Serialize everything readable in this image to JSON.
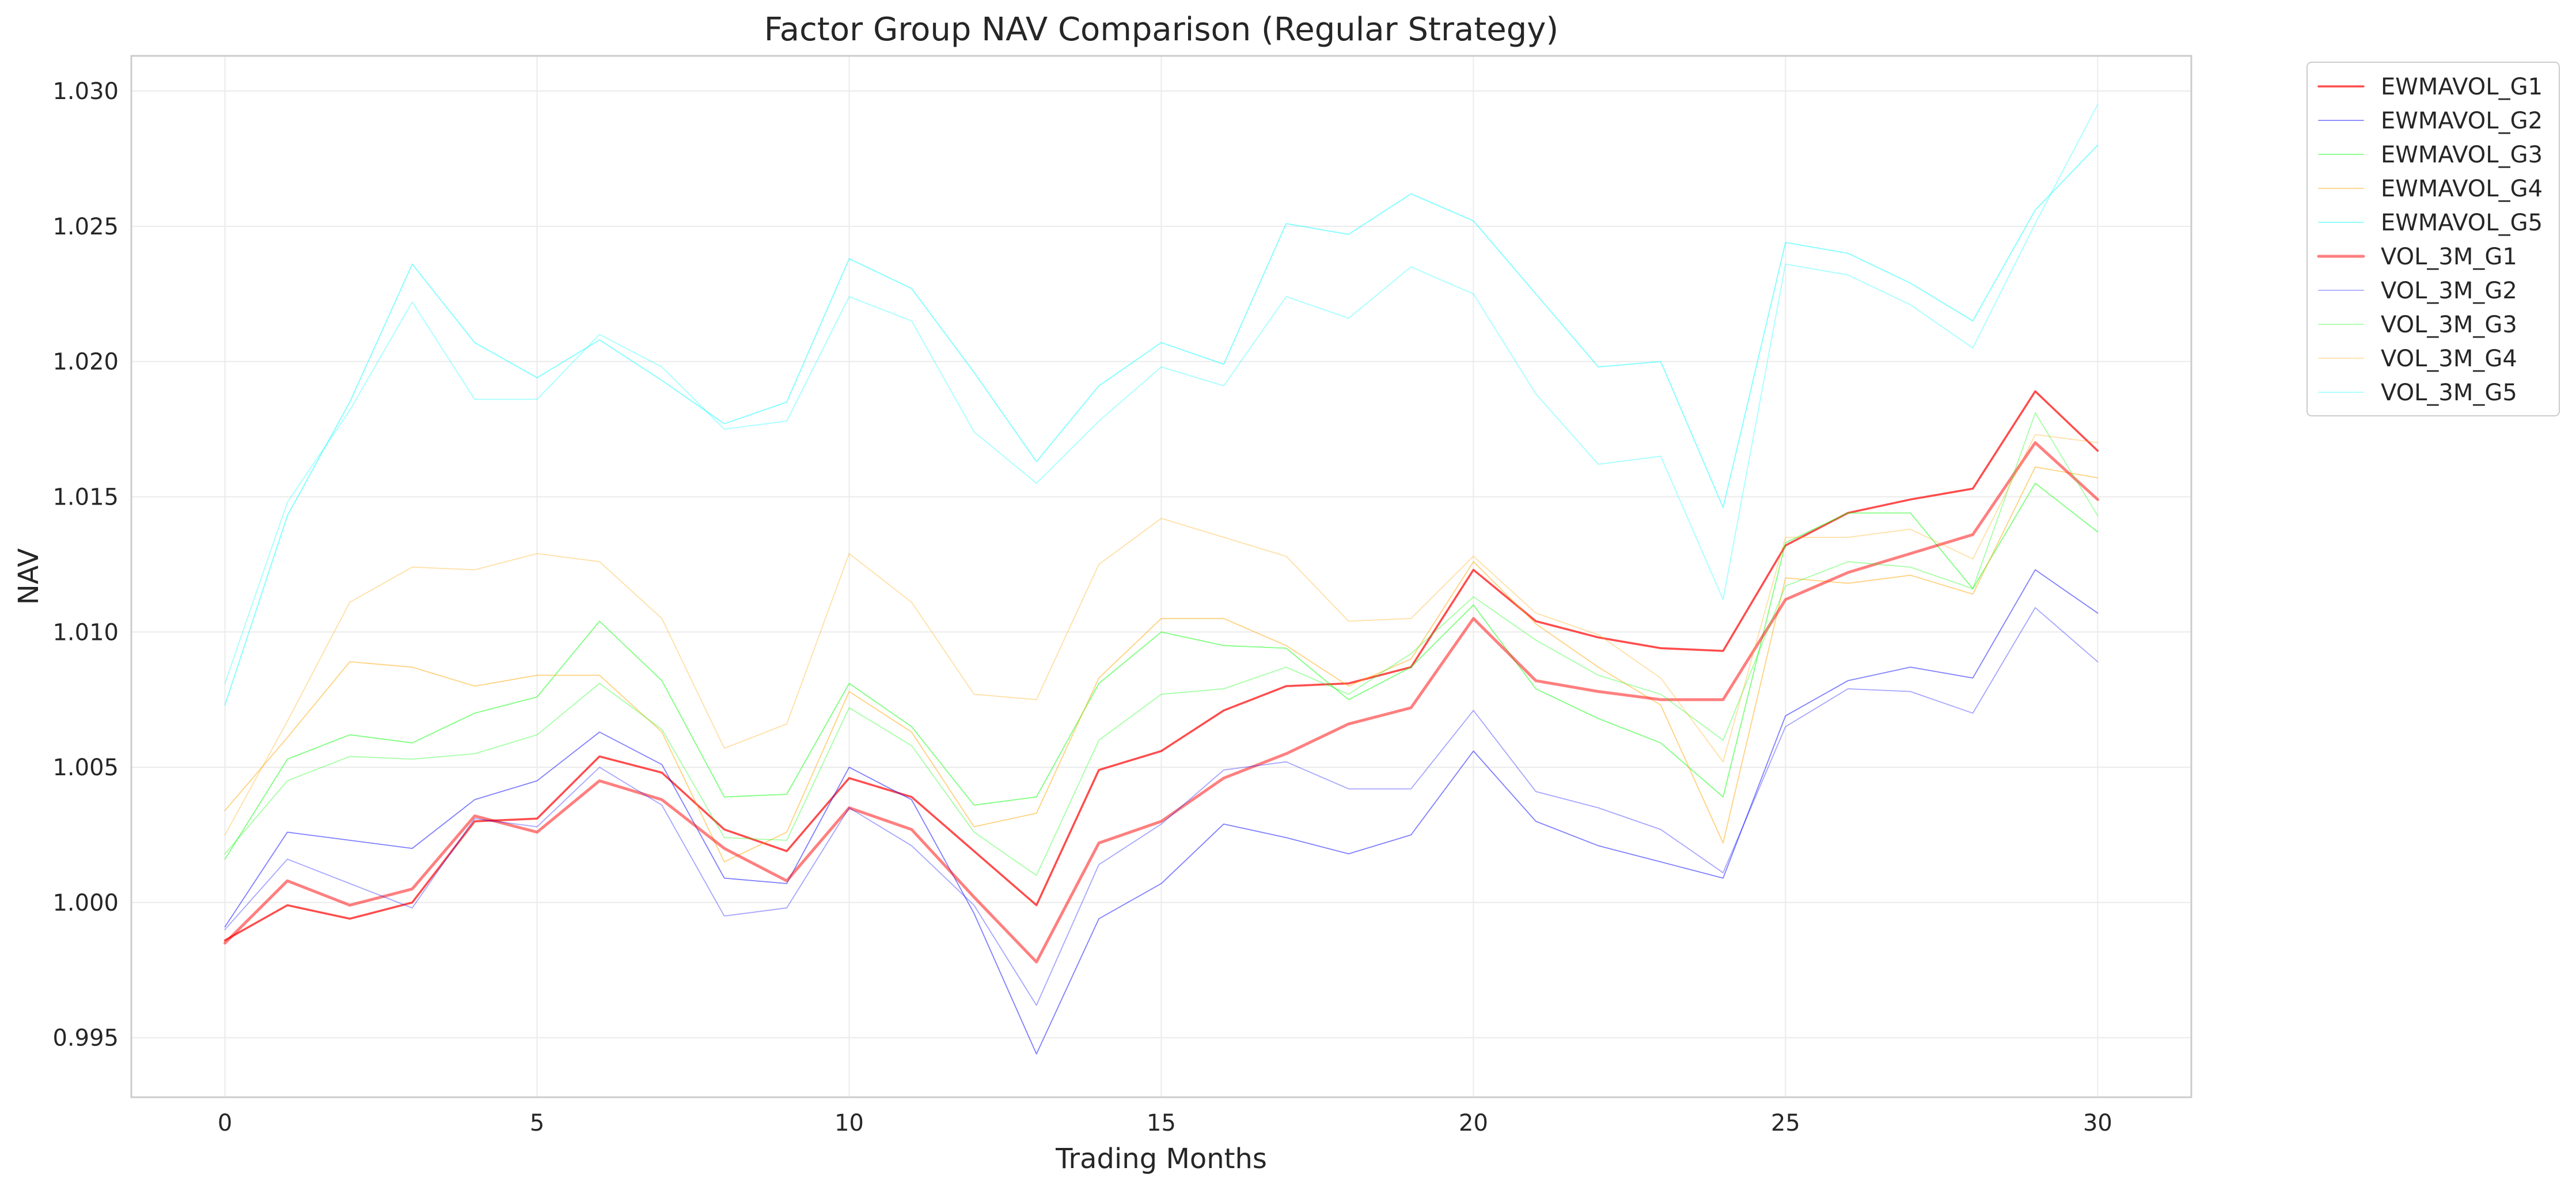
{
  "chart_data": {
    "type": "line",
    "title": "Factor Group NAV Comparison (Regular Strategy)",
    "xlabel": "Trading Months",
    "ylabel": "NAV",
    "xlim": [
      -1.5,
      31.5
    ],
    "ylim": [
      0.9928,
      1.0313
    ],
    "xticks": [
      0,
      5,
      10,
      15,
      20,
      25,
      30
    ],
    "yticks": [
      0.995,
      1.0,
      1.005,
      1.01,
      1.015,
      1.02,
      1.025,
      1.03
    ],
    "ytick_labels": [
      "0.995",
      "1.000",
      "1.005",
      "1.010",
      "1.015",
      "1.020",
      "1.025",
      "1.030"
    ],
    "grid": true,
    "legend_position": "outside-right",
    "x": [
      0,
      1,
      2,
      3,
      4,
      5,
      6,
      7,
      8,
      9,
      10,
      11,
      12,
      13,
      14,
      15,
      16,
      17,
      18,
      19,
      20,
      21,
      22,
      23,
      24,
      25,
      26,
      27,
      28,
      29,
      30
    ],
    "series": [
      {
        "name": "EWMAVOL_G1",
        "color": "#ff0000",
        "opacity": 0.7,
        "width": 3.5,
        "values": [
          0.9986,
          0.9999,
          0.9994,
          1.0,
          1.003,
          1.0031,
          1.0054,
          1.0048,
          1.0027,
          1.0019,
          1.0046,
          1.0039,
          1.0019,
          0.9999,
          1.0049,
          1.0056,
          1.0071,
          1.008,
          1.0081,
          1.0087,
          1.0123,
          1.0104,
          1.0098,
          1.0094,
          1.0093,
          1.0132,
          1.0144,
          1.0149,
          1.0153,
          1.0189,
          1.0167
        ]
      },
      {
        "name": "EWMAVOL_G2",
        "color": "#0000ff",
        "opacity": 0.5,
        "width": 1.8,
        "values": [
          0.9991,
          1.0026,
          1.0023,
          1.002,
          1.0038,
          1.0045,
          1.0063,
          1.0051,
          1.0009,
          1.0007,
          1.005,
          1.0038,
          0.9996,
          0.9944,
          0.9994,
          1.0007,
          1.0029,
          1.0024,
          1.0018,
          1.0025,
          1.0056,
          1.003,
          1.0021,
          1.0015,
          1.0009,
          1.0069,
          1.0082,
          1.0087,
          1.0083,
          1.0123,
          1.0107
        ]
      },
      {
        "name": "EWMAVOL_G3",
        "color": "#00ff00",
        "opacity": 0.5,
        "width": 1.8,
        "values": [
          1.0016,
          1.0053,
          1.0062,
          1.0059,
          1.007,
          1.0076,
          1.0104,
          1.0082,
          1.0039,
          1.004,
          1.0081,
          1.0065,
          1.0036,
          1.0039,
          1.0081,
          1.01,
          1.0095,
          1.0094,
          1.0075,
          1.0087,
          1.011,
          1.0079,
          1.0068,
          1.0059,
          1.0039,
          1.0133,
          1.0144,
          1.0144,
          1.0116,
          1.0155,
          1.0137
        ]
      },
      {
        "name": "EWMAVOL_G4",
        "color": "#ffa500",
        "opacity": 0.5,
        "width": 1.8,
        "values": [
          1.0034,
          1.0061,
          1.0089,
          1.0087,
          1.008,
          1.0084,
          1.0084,
          1.0063,
          1.0015,
          1.0026,
          1.0078,
          1.0063,
          1.0028,
          1.0033,
          1.0083,
          1.0105,
          1.0105,
          1.0095,
          1.008,
          1.009,
          1.0126,
          1.0103,
          1.0087,
          1.0073,
          1.0022,
          1.012,
          1.0118,
          1.0121,
          1.0114,
          1.0161,
          1.0157
        ]
      },
      {
        "name": "EWMAVOL_G5",
        "color": "#00ffff",
        "opacity": 0.5,
        "width": 1.8,
        "values": [
          1.0073,
          1.0143,
          1.0185,
          1.0236,
          1.0207,
          1.0194,
          1.0208,
          1.0193,
          1.0177,
          1.0185,
          1.0238,
          1.0227,
          1.0196,
          1.0163,
          1.0191,
          1.0207,
          1.0199,
          1.0251,
          1.0247,
          1.0262,
          1.0252,
          1.0225,
          1.0198,
          1.02,
          1.0146,
          1.0244,
          1.024,
          1.0229,
          1.0215,
          1.0256,
          1.028
        ]
      },
      {
        "name": "VOL_3M_G1",
        "color": "#ff0000",
        "opacity": 0.5,
        "width": 5,
        "values": [
          0.9985,
          1.0008,
          0.9999,
          1.0005,
          1.0032,
          1.0026,
          1.0045,
          1.0038,
          1.002,
          1.0008,
          1.0035,
          1.0027,
          1.0002,
          0.9978,
          1.0022,
          1.003,
          1.0046,
          1.0055,
          1.0066,
          1.0072,
          1.0105,
          1.0082,
          1.0078,
          1.0075,
          1.0075,
          1.0112,
          1.0122,
          1.0129,
          1.0136,
          1.017,
          1.0149
        ]
      },
      {
        "name": "VOL_3M_G2",
        "color": "#0000ff",
        "opacity": 0.35,
        "width": 1.8,
        "values": [
          0.999,
          1.0016,
          1.0007,
          0.9998,
          1.0031,
          1.0028,
          1.005,
          1.0036,
          0.9995,
          0.9998,
          1.0035,
          1.0021,
          0.9999,
          0.9962,
          1.0014,
          1.0029,
          1.0049,
          1.0052,
          1.0042,
          1.0042,
          1.0071,
          1.0041,
          1.0035,
          1.0027,
          1.0011,
          1.0065,
          1.0079,
          1.0078,
          1.007,
          1.0109,
          1.0089
        ]
      },
      {
        "name": "VOL_3M_G3",
        "color": "#00ff00",
        "opacity": 0.35,
        "width": 1.8,
        "values": [
          1.0018,
          1.0045,
          1.0054,
          1.0053,
          1.0055,
          1.0062,
          1.0081,
          1.0064,
          1.0024,
          1.0023,
          1.0072,
          1.0058,
          1.0026,
          1.001,
          1.006,
          1.0077,
          1.0079,
          1.0087,
          1.0077,
          1.0092,
          1.0113,
          1.0097,
          1.0084,
          1.0077,
          1.006,
          1.0117,
          1.0126,
          1.0124,
          1.0116,
          1.0181,
          1.0143
        ]
      },
      {
        "name": "VOL_3M_G4",
        "color": "#ffa500",
        "opacity": 0.35,
        "width": 1.8,
        "values": [
          1.0025,
          1.0067,
          1.0111,
          1.0124,
          1.0123,
          1.0129,
          1.0126,
          1.0105,
          1.0057,
          1.0066,
          1.0129,
          1.0111,
          1.0077,
          1.0075,
          1.0125,
          1.0142,
          1.0135,
          1.0128,
          1.0104,
          1.0105,
          1.0128,
          1.0107,
          1.0099,
          1.0083,
          1.0052,
          1.0135,
          1.0135,
          1.0138,
          1.0127,
          1.0173,
          1.017
        ]
      },
      {
        "name": "VOL_3M_G5",
        "color": "#00ffff",
        "opacity": 0.35,
        "width": 1.8,
        "values": [
          1.0081,
          1.0148,
          1.0182,
          1.0222,
          1.0186,
          1.0186,
          1.021,
          1.0198,
          1.0175,
          1.0178,
          1.0224,
          1.0215,
          1.0174,
          1.0155,
          1.0178,
          1.0198,
          1.0191,
          1.0224,
          1.0216,
          1.0235,
          1.0225,
          1.0188,
          1.0162,
          1.0165,
          1.0112,
          1.0236,
          1.0232,
          1.0221,
          1.0205,
          1.0251,
          1.0295
        ]
      }
    ]
  }
}
